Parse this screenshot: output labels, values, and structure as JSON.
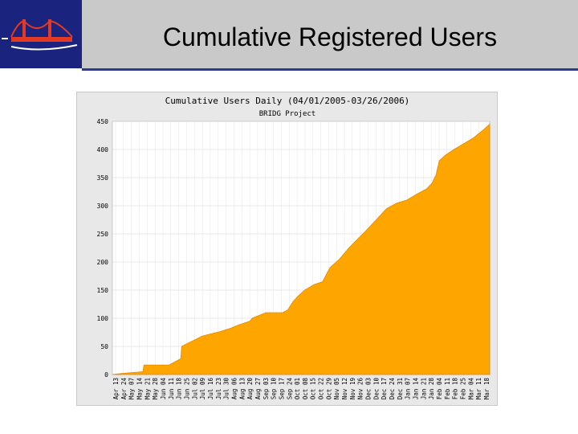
{
  "slide": {
    "title": "Cumulative Registered Users"
  },
  "colors": {
    "header_bg": "#c9c9c9",
    "logo_bg": "#1a237e",
    "area_fill": "#ffa500",
    "plot_bg": "#ffffff",
    "frame_bg": "#e8e8e8"
  },
  "chart_data": {
    "type": "area",
    "title": "Cumulative Users Daily (04/01/2005-03/26/2006)",
    "subtitle": "BRIDG Project",
    "ylim": [
      0,
      450
    ],
    "yticks": [
      0,
      50,
      100,
      150,
      200,
      250,
      300,
      350,
      400,
      450
    ],
    "grid": true,
    "x_tick_labels": [
      "Apr 13",
      "Apr 24",
      "May 07",
      "May 14",
      "May 21",
      "May 28",
      "Jun 04",
      "Jun 11",
      "Jun 18",
      "Jun 25",
      "Jul 02",
      "Jul 09",
      "Jul 16",
      "Jul 23",
      "Jul 30",
      "Aug 06",
      "Aug 13",
      "Aug 20",
      "Aug 27",
      "Sep 03",
      "Sep 10",
      "Sep 17",
      "Sep 24",
      "Oct 01",
      "Oct 08",
      "Oct 15",
      "Oct 22",
      "Oct 29",
      "Nov 05",
      "Nov 12",
      "Nov 19",
      "Nov 26",
      "Dec 03",
      "Dec 10",
      "Dec 17",
      "Dec 24",
      "Dec 31",
      "Jan 07",
      "Jan 14",
      "Jan 21",
      "Jan 28",
      "Feb 04",
      "Feb 11",
      "Feb 18",
      "Feb 25",
      "Mar 04",
      "Mar 11",
      "Mar 18"
    ],
    "series": [
      {
        "x": [
          "2005-04-01",
          "2005-04-10",
          "2005-04-30",
          "2005-05-01",
          "2005-05-25",
          "2005-05-28",
          "2005-06-05",
          "2005-06-06",
          "2005-06-12",
          "2005-06-20",
          "2005-06-25",
          "2005-07-03",
          "2005-07-12",
          "2005-07-22",
          "2005-07-30",
          "2005-08-10",
          "2005-08-12",
          "2005-08-25",
          "2005-09-02",
          "2005-09-10",
          "2005-09-15",
          "2005-09-20",
          "2005-09-25",
          "2005-10-01",
          "2005-10-10",
          "2005-10-18",
          "2005-10-25",
          "2005-11-03",
          "2005-11-12",
          "2005-11-20",
          "2005-11-28",
          "2005-12-08",
          "2005-12-18",
          "2005-12-28",
          "2006-01-06",
          "2006-01-15",
          "2006-01-25",
          "2006-01-30",
          "2006-02-03",
          "2006-02-06",
          "2006-02-12",
          "2006-02-20",
          "2006-03-01",
          "2006-03-10",
          "2006-03-20",
          "2006-03-26"
        ],
        "values": [
          0,
          2,
          5,
          17,
          17,
          20,
          28,
          50,
          56,
          63,
          68,
          72,
          76,
          82,
          88,
          95,
          100,
          110,
          110,
          110,
          115,
          130,
          140,
          150,
          160,
          165,
          190,
          205,
          225,
          240,
          255,
          275,
          295,
          305,
          310,
          320,
          330,
          340,
          355,
          380,
          390,
          400,
          410,
          420,
          435,
          445
        ]
      }
    ]
  }
}
